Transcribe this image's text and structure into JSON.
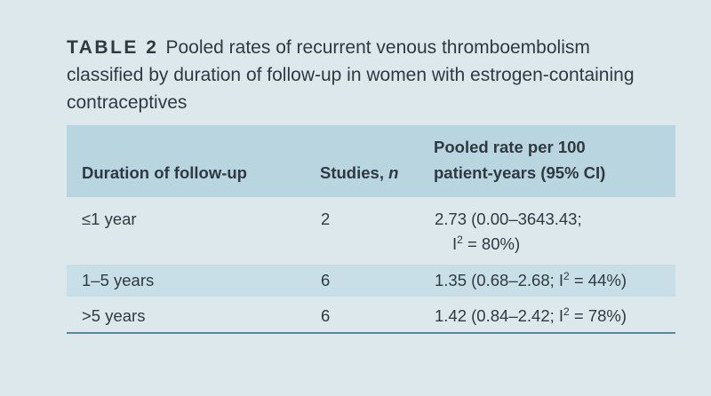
{
  "caption": {
    "label": "TABLE 2",
    "text": "Pooled rates of recurrent venous thromboembolism classified by duration of follow-up in women with estrogen-containing contraceptives"
  },
  "table": {
    "headers": {
      "duration": "Duration of follow-up",
      "studies": "Studies,",
      "studies_n": "n",
      "rate_line1": "Pooled rate per 100",
      "rate_line2": "patient-years (95% CI)"
    },
    "rows": [
      {
        "duration": "≤1 year",
        "studies": "2",
        "rate_a": "2.73 (0.00–3643.43;",
        "rate_b_pre": "I",
        "rate_b_sup": "2",
        "rate_b_post": " = 80%)"
      },
      {
        "duration": "1–5 years",
        "studies": "6",
        "rate_pre": "1.35 (0.68–2.68; I",
        "rate_sup": "2",
        "rate_post": " = 44%)"
      },
      {
        "duration": ">5 years",
        "studies": "6",
        "rate_pre": "1.42 (0.84–2.42; I",
        "rate_sup": "2",
        "rate_post": " = 78%)"
      }
    ]
  }
}
